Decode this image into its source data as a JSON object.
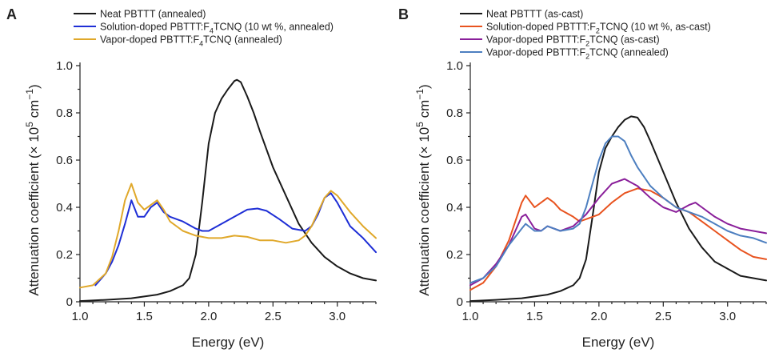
{
  "chart_data": [
    {
      "type": "line",
      "panel_label": "A",
      "xlabel": "Energy (eV)",
      "ylabel": "Attenuation coefficient (× 10⁵ cm⁻¹)",
      "xlim": [
        1.0,
        3.3
      ],
      "ylim": [
        0,
        1.0
      ],
      "xticks": [
        "1.0",
        "1.5",
        "2.0",
        "2.5",
        "3.0"
      ],
      "yticks": [
        "0",
        "0.2",
        "0.4",
        "0.6",
        "0.8",
        "1.0"
      ],
      "legend_position": "top",
      "series": [
        {
          "name": "Neat PBTTT (annealed)",
          "color": "#1a1a1a",
          "x": [
            1.0,
            1.2,
            1.4,
            1.6,
            1.7,
            1.8,
            1.85,
            1.9,
            1.95,
            2.0,
            2.05,
            2.1,
            2.15,
            2.2,
            2.22,
            2.25,
            2.3,
            2.35,
            2.4,
            2.5,
            2.6,
            2.7,
            2.8,
            2.9,
            3.0,
            3.1,
            3.2,
            3.3
          ],
          "y": [
            0.003,
            0.008,
            0.015,
            0.03,
            0.045,
            0.07,
            0.1,
            0.2,
            0.42,
            0.67,
            0.8,
            0.86,
            0.9,
            0.935,
            0.94,
            0.93,
            0.87,
            0.8,
            0.72,
            0.57,
            0.45,
            0.33,
            0.25,
            0.19,
            0.15,
            0.12,
            0.1,
            0.09
          ]
        },
        {
          "name": "Solution-doped PBTTT:F₄TCNQ (10 wt %, annealed)",
          "color": "#1f2fd6",
          "x": [
            1.12,
            1.2,
            1.25,
            1.3,
            1.35,
            1.4,
            1.45,
            1.5,
            1.55,
            1.6,
            1.65,
            1.7,
            1.8,
            1.9,
            1.95,
            2.0,
            2.1,
            2.2,
            2.3,
            2.38,
            2.45,
            2.55,
            2.65,
            2.75,
            2.8,
            2.85,
            2.9,
            2.95,
            3.0,
            3.05,
            3.1,
            3.2,
            3.3
          ],
          "y": [
            0.07,
            0.12,
            0.17,
            0.24,
            0.33,
            0.43,
            0.36,
            0.36,
            0.4,
            0.42,
            0.38,
            0.36,
            0.34,
            0.31,
            0.3,
            0.3,
            0.33,
            0.36,
            0.39,
            0.395,
            0.385,
            0.35,
            0.31,
            0.3,
            0.32,
            0.37,
            0.44,
            0.46,
            0.42,
            0.37,
            0.32,
            0.27,
            0.21
          ]
        },
        {
          "name": "Vapor-doped PBTTT:F₄TCNQ (annealed)",
          "color": "#e0a82a",
          "x": [
            1.0,
            1.1,
            1.2,
            1.25,
            1.3,
            1.35,
            1.4,
            1.45,
            1.5,
            1.55,
            1.6,
            1.65,
            1.7,
            1.8,
            1.9,
            2.0,
            2.1,
            2.2,
            2.3,
            2.4,
            2.5,
            2.6,
            2.7,
            2.75,
            2.8,
            2.85,
            2.9,
            2.95,
            3.0,
            3.1,
            3.2,
            3.3
          ],
          "y": [
            0.06,
            0.07,
            0.12,
            0.19,
            0.3,
            0.43,
            0.5,
            0.42,
            0.39,
            0.41,
            0.43,
            0.39,
            0.34,
            0.3,
            0.28,
            0.27,
            0.27,
            0.28,
            0.275,
            0.26,
            0.26,
            0.25,
            0.26,
            0.28,
            0.32,
            0.38,
            0.44,
            0.47,
            0.45,
            0.38,
            0.32,
            0.27
          ]
        }
      ]
    },
    {
      "type": "line",
      "panel_label": "B",
      "xlabel": "Energy (eV)",
      "ylabel": "Attenuation coefficient (× 10⁵ cm⁻¹)",
      "xlim": [
        1.0,
        3.3
      ],
      "ylim": [
        0,
        1.0
      ],
      "xticks": [
        "1.0",
        "1.5",
        "2.0",
        "2.5",
        "3.0"
      ],
      "yticks": [
        "0",
        "0.2",
        "0.4",
        "0.6",
        "0.8",
        "1.0"
      ],
      "legend_position": "top",
      "series": [
        {
          "name": "Neat PBTTT (as-cast)",
          "color": "#1a1a1a",
          "x": [
            1.0,
            1.2,
            1.4,
            1.6,
            1.7,
            1.8,
            1.85,
            1.9,
            1.95,
            2.0,
            2.05,
            2.1,
            2.15,
            2.2,
            2.25,
            2.3,
            2.35,
            2.4,
            2.5,
            2.6,
            2.7,
            2.8,
            2.9,
            3.0,
            3.1,
            3.2,
            3.3
          ],
          "y": [
            0.003,
            0.008,
            0.015,
            0.03,
            0.045,
            0.07,
            0.1,
            0.18,
            0.36,
            0.55,
            0.65,
            0.7,
            0.74,
            0.77,
            0.785,
            0.78,
            0.74,
            0.68,
            0.55,
            0.42,
            0.31,
            0.23,
            0.17,
            0.14,
            0.11,
            0.1,
            0.09
          ]
        },
        {
          "name": "Solution-doped PBTTT:F₂TCNQ (10 wt %, as-cast)",
          "color": "#e8531f",
          "x": [
            1.0,
            1.1,
            1.2,
            1.3,
            1.35,
            1.4,
            1.43,
            1.5,
            1.55,
            1.6,
            1.65,
            1.7,
            1.8,
            1.85,
            1.9,
            2.0,
            2.1,
            2.2,
            2.3,
            2.4,
            2.5,
            2.6,
            2.7,
            2.8,
            2.9,
            3.0,
            3.1,
            3.2,
            3.3
          ],
          "y": [
            0.05,
            0.08,
            0.15,
            0.26,
            0.34,
            0.42,
            0.45,
            0.4,
            0.42,
            0.44,
            0.42,
            0.39,
            0.36,
            0.34,
            0.35,
            0.37,
            0.42,
            0.46,
            0.48,
            0.47,
            0.44,
            0.4,
            0.38,
            0.34,
            0.3,
            0.26,
            0.22,
            0.19,
            0.18
          ]
        },
        {
          "name": "Vapor-doped PBTTT:F₂TCNQ (as-cast)",
          "color": "#8a1f9a",
          "x": [
            1.0,
            1.1,
            1.2,
            1.3,
            1.35,
            1.4,
            1.43,
            1.5,
            1.55,
            1.6,
            1.7,
            1.8,
            1.9,
            2.0,
            2.1,
            2.2,
            2.3,
            2.4,
            2.5,
            2.6,
            2.7,
            2.75,
            2.8,
            2.9,
            3.0,
            3.1,
            3.2,
            3.3
          ],
          "y": [
            0.07,
            0.1,
            0.16,
            0.24,
            0.3,
            0.36,
            0.37,
            0.31,
            0.3,
            0.32,
            0.3,
            0.32,
            0.37,
            0.44,
            0.5,
            0.52,
            0.49,
            0.44,
            0.4,
            0.38,
            0.41,
            0.42,
            0.4,
            0.36,
            0.33,
            0.31,
            0.3,
            0.29
          ]
        },
        {
          "name": "Vapor-doped PBTTT:F₂TCNQ (annealed)",
          "color": "#4d7fc0",
          "x": [
            1.0,
            1.1,
            1.2,
            1.3,
            1.4,
            1.43,
            1.5,
            1.55,
            1.6,
            1.7,
            1.8,
            1.85,
            1.9,
            1.95,
            2.0,
            2.05,
            2.1,
            2.15,
            2.2,
            2.25,
            2.3,
            2.35,
            2.4,
            2.5,
            2.6,
            2.7,
            2.8,
            2.9,
            3.0,
            3.1,
            3.2,
            3.3
          ],
          "y": [
            0.08,
            0.1,
            0.15,
            0.24,
            0.31,
            0.33,
            0.3,
            0.3,
            0.32,
            0.3,
            0.31,
            0.33,
            0.4,
            0.5,
            0.6,
            0.67,
            0.7,
            0.7,
            0.68,
            0.62,
            0.57,
            0.53,
            0.49,
            0.44,
            0.4,
            0.38,
            0.36,
            0.33,
            0.3,
            0.28,
            0.27,
            0.25
          ]
        }
      ]
    }
  ]
}
